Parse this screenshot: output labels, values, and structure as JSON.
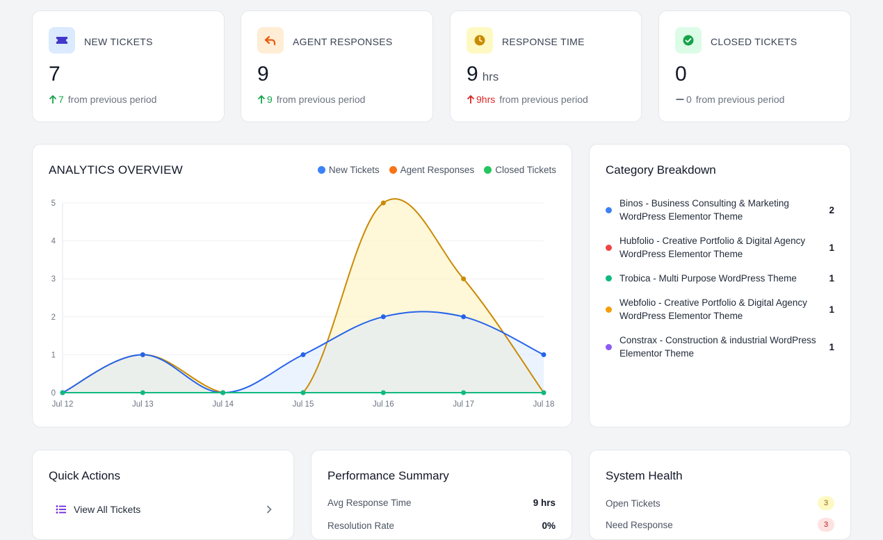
{
  "stats": [
    {
      "label": "NEW TICKETS",
      "value": "7",
      "unit": "",
      "delta_num": "7",
      "delta_text": "from previous period",
      "trend": "up",
      "icon": "ticket-icon",
      "icon_bg": "#dbeafe",
      "icon_color": "#4338ca",
      "delta_color": "#16a34a"
    },
    {
      "label": "AGENT RESPONSES",
      "value": "9",
      "unit": "",
      "delta_num": "9",
      "delta_text": "from previous period",
      "trend": "up",
      "icon": "reply-icon",
      "icon_bg": "#ffedd5",
      "icon_color": "#ea580c",
      "delta_color": "#16a34a"
    },
    {
      "label": "RESPONSE TIME",
      "value": "9",
      "unit": "hrs",
      "delta_num": "9hrs",
      "delta_text": "from previous period",
      "trend": "up",
      "icon": "clock-icon",
      "icon_bg": "#fef9c3",
      "icon_color": "#ca8a04",
      "delta_color": "#dc2626"
    },
    {
      "label": "CLOSED TICKETS",
      "value": "0",
      "unit": "",
      "delta_num": "0",
      "delta_text": "from previous period",
      "trend": "flat",
      "icon": "check-circle-icon",
      "icon_bg": "#dcfce7",
      "icon_color": "#16a34a",
      "delta_color": "#6b7280"
    }
  ],
  "analytics": {
    "title": "ANALYTICS OVERVIEW",
    "legend": [
      {
        "name": "New Tickets",
        "color": "#3b82f6"
      },
      {
        "name": "Agent Responses",
        "color": "#f97316"
      },
      {
        "name": "Closed Tickets",
        "color": "#22c55e"
      }
    ]
  },
  "chart_data": {
    "type": "area",
    "title": "ANALYTICS OVERVIEW",
    "categories": [
      "Jul 12",
      "Jul 13",
      "Jul 14",
      "Jul 15",
      "Jul 16",
      "Jul 17",
      "Jul 18"
    ],
    "series": [
      {
        "name": "New Tickets",
        "values": [
          0,
          1,
          0,
          1,
          2,
          2,
          1
        ],
        "color": "#2563eb",
        "fill": "#dbeafe"
      },
      {
        "name": "Agent Responses",
        "values": [
          0,
          1,
          0,
          0,
          5,
          3,
          0
        ],
        "color": "#ca8a04",
        "fill": "#fef3c7"
      },
      {
        "name": "Closed Tickets",
        "values": [
          0,
          0,
          0,
          0,
          0,
          0,
          0
        ],
        "color": "#10b981",
        "fill": "#d1fae5"
      }
    ],
    "yticks": [
      "0",
      "1",
      "2",
      "3",
      "4",
      "5"
    ],
    "ylim": [
      0,
      5
    ],
    "grid": true,
    "legend_position": "top-right"
  },
  "categories": {
    "title": "Category Breakdown",
    "items": [
      {
        "name": "Binos - Business Consulting & Marketing WordPress Elementor Theme",
        "count": "2",
        "color": "#3b82f6"
      },
      {
        "name": "Hubfolio - Creative Portfolio & Digital Agency WordPress Elementor Theme",
        "count": "1",
        "color": "#ef4444"
      },
      {
        "name": "Trobica - Multi Purpose WordPress Theme",
        "count": "1",
        "color": "#10b981"
      },
      {
        "name": "Webfolio - Creative Portfolio & Digital Agency WordPress Elementor Theme",
        "count": "1",
        "color": "#f59e0b"
      },
      {
        "name": "Constrax - Construction & industrial WordPress Elementor Theme",
        "count": "1",
        "color": "#8b5cf6"
      }
    ]
  },
  "quick_actions": {
    "title": "Quick Actions",
    "items": [
      {
        "label": "View All Tickets",
        "icon": "list-icon"
      }
    ]
  },
  "performance": {
    "title": "Performance Summary",
    "rows": [
      {
        "label": "Avg Response Time",
        "value": "9 hrs"
      },
      {
        "label": "Resolution Rate",
        "value": "0%"
      }
    ]
  },
  "health": {
    "title": "System Health",
    "rows": [
      {
        "label": "Open Tickets",
        "value": "3",
        "bg": "#fef9c3",
        "fg": "#a16207"
      },
      {
        "label": "Need Response",
        "value": "3",
        "bg": "#fee2e2",
        "fg": "#b91c1c"
      }
    ]
  }
}
